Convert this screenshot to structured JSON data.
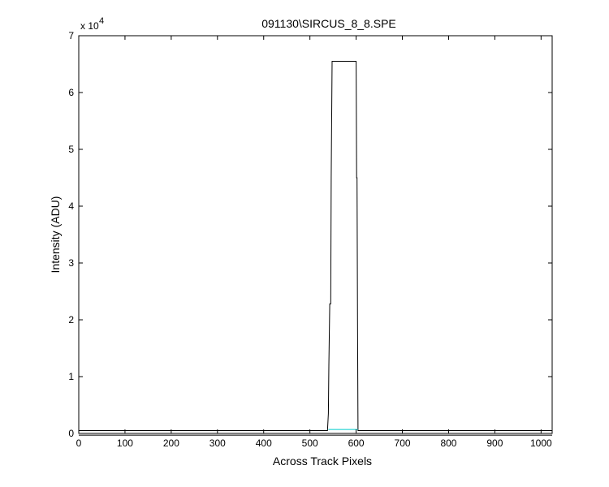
{
  "chart_data": {
    "type": "line",
    "title": "091130\\SIRCUS_8_8.SPE",
    "xlabel": "Across Track Pixels",
    "ylabel": "Intensity (ADU)",
    "y_multiplier": "x 10",
    "y_multiplier_exponent": "4",
    "xlim": [
      0,
      1024
    ],
    "ylim": [
      0,
      70000
    ],
    "xticks": [
      0,
      100,
      200,
      300,
      400,
      500,
      600,
      700,
      800,
      900,
      1000
    ],
    "yticks": [
      0,
      1,
      2,
      3,
      4,
      5,
      6,
      7
    ],
    "ytick_scale": 10000,
    "grid": false,
    "series": [
      {
        "color": "#000000",
        "x": [
          0,
          538,
          540,
          541,
          543,
          545,
          546,
          548,
          596,
          600,
          601,
          602,
          603,
          604,
          1024
        ],
        "y": [
          500,
          500,
          3500,
          12000,
          22800,
          22800,
          45000,
          65500,
          65500,
          65500,
          45000,
          45000,
          20000,
          500,
          500
        ]
      },
      {
        "color": "#000000",
        "x": [
          0,
          540,
          604,
          1024
        ],
        "y": [
          -300,
          -300,
          -300,
          -300
        ]
      },
      {
        "color": "#00cccc",
        "x": [
          540,
          604
        ],
        "y": [
          700,
          700
        ]
      }
    ]
  }
}
